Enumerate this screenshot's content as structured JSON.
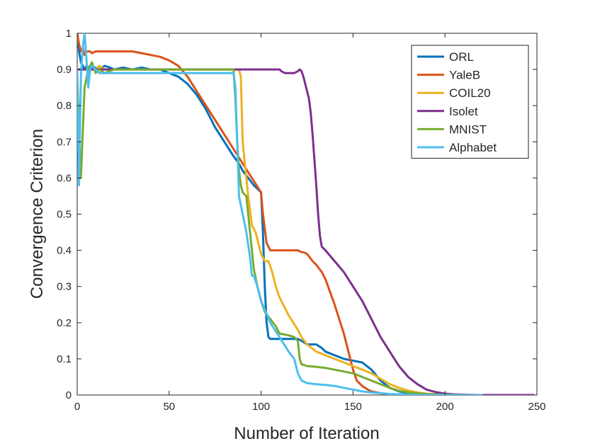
{
  "chart_data": {
    "type": "line",
    "title": "",
    "xlabel": "Number of Iteration",
    "ylabel": "Convergence Criterion",
    "xlim": [
      0,
      250
    ],
    "ylim": [
      0,
      1
    ],
    "xticks": [
      0,
      50,
      100,
      150,
      200,
      250
    ],
    "yticks": [
      0,
      0.1,
      0.2,
      0.3,
      0.4,
      0.5,
      0.6,
      0.7,
      0.8,
      0.9,
      1
    ],
    "xtick_labels": [
      "0",
      "50",
      "100",
      "150",
      "200",
      "250"
    ],
    "ytick_labels": [
      "0",
      "0.1",
      "0.2",
      "0.3",
      "0.4",
      "0.5",
      "0.6",
      "0.7",
      "0.8",
      "0.9",
      "1"
    ],
    "grid": false,
    "legend_position": "top-right",
    "series": [
      {
        "name": "ORL",
        "color": "#0072bd",
        "x": [
          0,
          1,
          2,
          3,
          4,
          5,
          6,
          7,
          8,
          10,
          12,
          15,
          18,
          20,
          25,
          30,
          35,
          40,
          45,
          50,
          55,
          60,
          65,
          70,
          75,
          80,
          85,
          88,
          90,
          93,
          96,
          98,
          100,
          101,
          102,
          103,
          104,
          105,
          110,
          115,
          120,
          122,
          125,
          128,
          130,
          133,
          135,
          140,
          145,
          150,
          155,
          160,
          165,
          170,
          175,
          180,
          185,
          190,
          195,
          200,
          205
        ],
        "y": [
          1.0,
          0.95,
          0.92,
          0.91,
          0.9,
          0.91,
          0.905,
          0.9,
          0.905,
          0.905,
          0.9,
          0.91,
          0.905,
          0.9,
          0.905,
          0.9,
          0.905,
          0.9,
          0.9,
          0.89,
          0.88,
          0.86,
          0.83,
          0.79,
          0.74,
          0.7,
          0.66,
          0.64,
          0.62,
          0.6,
          0.58,
          0.57,
          0.56,
          0.45,
          0.3,
          0.2,
          0.16,
          0.155,
          0.155,
          0.155,
          0.155,
          0.15,
          0.14,
          0.14,
          0.14,
          0.13,
          0.12,
          0.11,
          0.1,
          0.095,
          0.09,
          0.07,
          0.04,
          0.02,
          0.01,
          0.005,
          0.002,
          0.001,
          0.0,
          0.0,
          0.0
        ]
      },
      {
        "name": "YaleB",
        "color": "#d95319",
        "x": [
          0,
          1,
          2,
          3,
          4,
          5,
          6,
          7,
          8,
          10,
          15,
          20,
          25,
          30,
          35,
          40,
          45,
          50,
          55,
          60,
          65,
          70,
          75,
          80,
          85,
          90,
          95,
          100,
          101,
          103,
          105,
          110,
          115,
          118,
          120,
          122,
          123,
          125,
          128,
          130,
          133,
          135,
          140,
          145,
          148,
          150,
          152,
          155,
          158,
          160,
          165,
          170,
          175,
          180
        ],
        "y": [
          1.0,
          0.97,
          0.95,
          0.96,
          0.94,
          0.95,
          0.95,
          0.95,
          0.945,
          0.95,
          0.95,
          0.95,
          0.95,
          0.95,
          0.945,
          0.94,
          0.935,
          0.925,
          0.91,
          0.88,
          0.84,
          0.8,
          0.76,
          0.72,
          0.68,
          0.64,
          0.6,
          0.56,
          0.5,
          0.42,
          0.4,
          0.4,
          0.4,
          0.4,
          0.4,
          0.395,
          0.395,
          0.39,
          0.37,
          0.36,
          0.34,
          0.32,
          0.25,
          0.17,
          0.11,
          0.07,
          0.04,
          0.025,
          0.015,
          0.01,
          0.005,
          0.002,
          0.0,
          0.0
        ]
      },
      {
        "name": "COIL20",
        "color": "#edb120",
        "x": [
          0,
          2,
          4,
          6,
          8,
          10,
          12,
          15,
          20,
          30,
          40,
          50,
          60,
          70,
          80,
          85,
          87,
          88,
          89,
          90,
          92,
          93,
          95,
          97,
          100,
          102,
          104,
          106,
          108,
          110,
          115,
          120,
          122,
          125,
          130,
          135,
          140,
          145,
          150,
          155,
          160,
          165,
          170,
          175,
          180,
          185,
          190,
          195,
          200,
          205
        ],
        "y": [
          0.9,
          0.9,
          0.9,
          0.9,
          0.9,
          0.9,
          0.91,
          0.9,
          0.9,
          0.9,
          0.9,
          0.9,
          0.9,
          0.9,
          0.9,
          0.9,
          0.9,
          0.9,
          0.88,
          0.7,
          0.6,
          0.55,
          0.47,
          0.45,
          0.39,
          0.37,
          0.37,
          0.34,
          0.3,
          0.27,
          0.22,
          0.18,
          0.16,
          0.14,
          0.12,
          0.11,
          0.1,
          0.09,
          0.08,
          0.07,
          0.06,
          0.045,
          0.03,
          0.02,
          0.012,
          0.007,
          0.004,
          0.002,
          0.001,
          0.0
        ]
      },
      {
        "name": "Isolet",
        "color": "#7e2f8e",
        "x": [
          0,
          10,
          20,
          30,
          40,
          50,
          60,
          70,
          80,
          85,
          90,
          95,
          100,
          105,
          110,
          111,
          113,
          115,
          118,
          120,
          121,
          122,
          123,
          124,
          125,
          126,
          127,
          128,
          129,
          130,
          131,
          132,
          133,
          135,
          140,
          145,
          150,
          155,
          160,
          165,
          170,
          175,
          180,
          185,
          190,
          195,
          200,
          205,
          210,
          220,
          230,
          240,
          248
        ],
        "y": [
          0.9,
          0.9,
          0.9,
          0.9,
          0.9,
          0.9,
          0.9,
          0.9,
          0.9,
          0.9,
          0.9,
          0.9,
          0.9,
          0.9,
          0.9,
          0.895,
          0.89,
          0.89,
          0.89,
          0.895,
          0.9,
          0.895,
          0.88,
          0.86,
          0.84,
          0.82,
          0.78,
          0.72,
          0.65,
          0.58,
          0.5,
          0.44,
          0.41,
          0.4,
          0.37,
          0.34,
          0.3,
          0.26,
          0.21,
          0.16,
          0.12,
          0.08,
          0.05,
          0.03,
          0.015,
          0.008,
          0.004,
          0.002,
          0.001,
          0.0,
          0.0,
          0.0,
          0.0
        ]
      },
      {
        "name": "MNIST",
        "color": "#77ac30",
        "x": [
          0,
          2,
          4,
          6,
          8,
          10,
          12,
          15,
          20,
          30,
          40,
          50,
          60,
          70,
          80,
          85,
          86,
          87,
          88,
          89,
          90,
          92,
          94,
          96,
          98,
          100,
          102,
          105,
          108,
          110,
          115,
          118,
          120,
          121,
          122,
          125,
          130,
          135,
          140,
          145,
          150,
          155,
          160,
          165,
          170,
          175,
          180,
          190,
          200,
          210,
          220
        ],
        "y": [
          0.88,
          0.6,
          0.85,
          0.9,
          0.92,
          0.89,
          0.9,
          0.89,
          0.9,
          0.9,
          0.9,
          0.9,
          0.9,
          0.9,
          0.9,
          0.9,
          0.82,
          0.7,
          0.62,
          0.58,
          0.56,
          0.55,
          0.45,
          0.35,
          0.3,
          0.26,
          0.23,
          0.21,
          0.19,
          0.17,
          0.165,
          0.16,
          0.15,
          0.1,
          0.085,
          0.08,
          0.078,
          0.075,
          0.07,
          0.065,
          0.06,
          0.05,
          0.04,
          0.03,
          0.02,
          0.012,
          0.007,
          0.003,
          0.001,
          0.0,
          0.0
        ]
      },
      {
        "name": "Alphabet",
        "color": "#4dbeee",
        "x": [
          0,
          1,
          2,
          3,
          4,
          5,
          6,
          7,
          8,
          10,
          12,
          15,
          20,
          30,
          40,
          50,
          60,
          70,
          80,
          85,
          86,
          87,
          88,
          90,
          92,
          94,
          95,
          96,
          98,
          100,
          105,
          110,
          115,
          118,
          120,
          121,
          122,
          125,
          130,
          135,
          140,
          145,
          150,
          155,
          160,
          165,
          170,
          175,
          180,
          190,
          200,
          210,
          220
        ],
        "y": [
          0.9,
          0.58,
          0.88,
          0.96,
          1.0,
          0.93,
          0.85,
          0.9,
          0.91,
          0.9,
          0.89,
          0.89,
          0.89,
          0.89,
          0.89,
          0.89,
          0.89,
          0.89,
          0.89,
          0.89,
          0.85,
          0.7,
          0.55,
          0.5,
          0.45,
          0.38,
          0.33,
          0.33,
          0.3,
          0.26,
          0.2,
          0.16,
          0.12,
          0.1,
          0.06,
          0.05,
          0.04,
          0.033,
          0.03,
          0.028,
          0.025,
          0.02,
          0.015,
          0.01,
          0.007,
          0.005,
          0.003,
          0.002,
          0.001,
          0.0,
          0.0,
          0.0,
          0.0
        ]
      }
    ]
  }
}
